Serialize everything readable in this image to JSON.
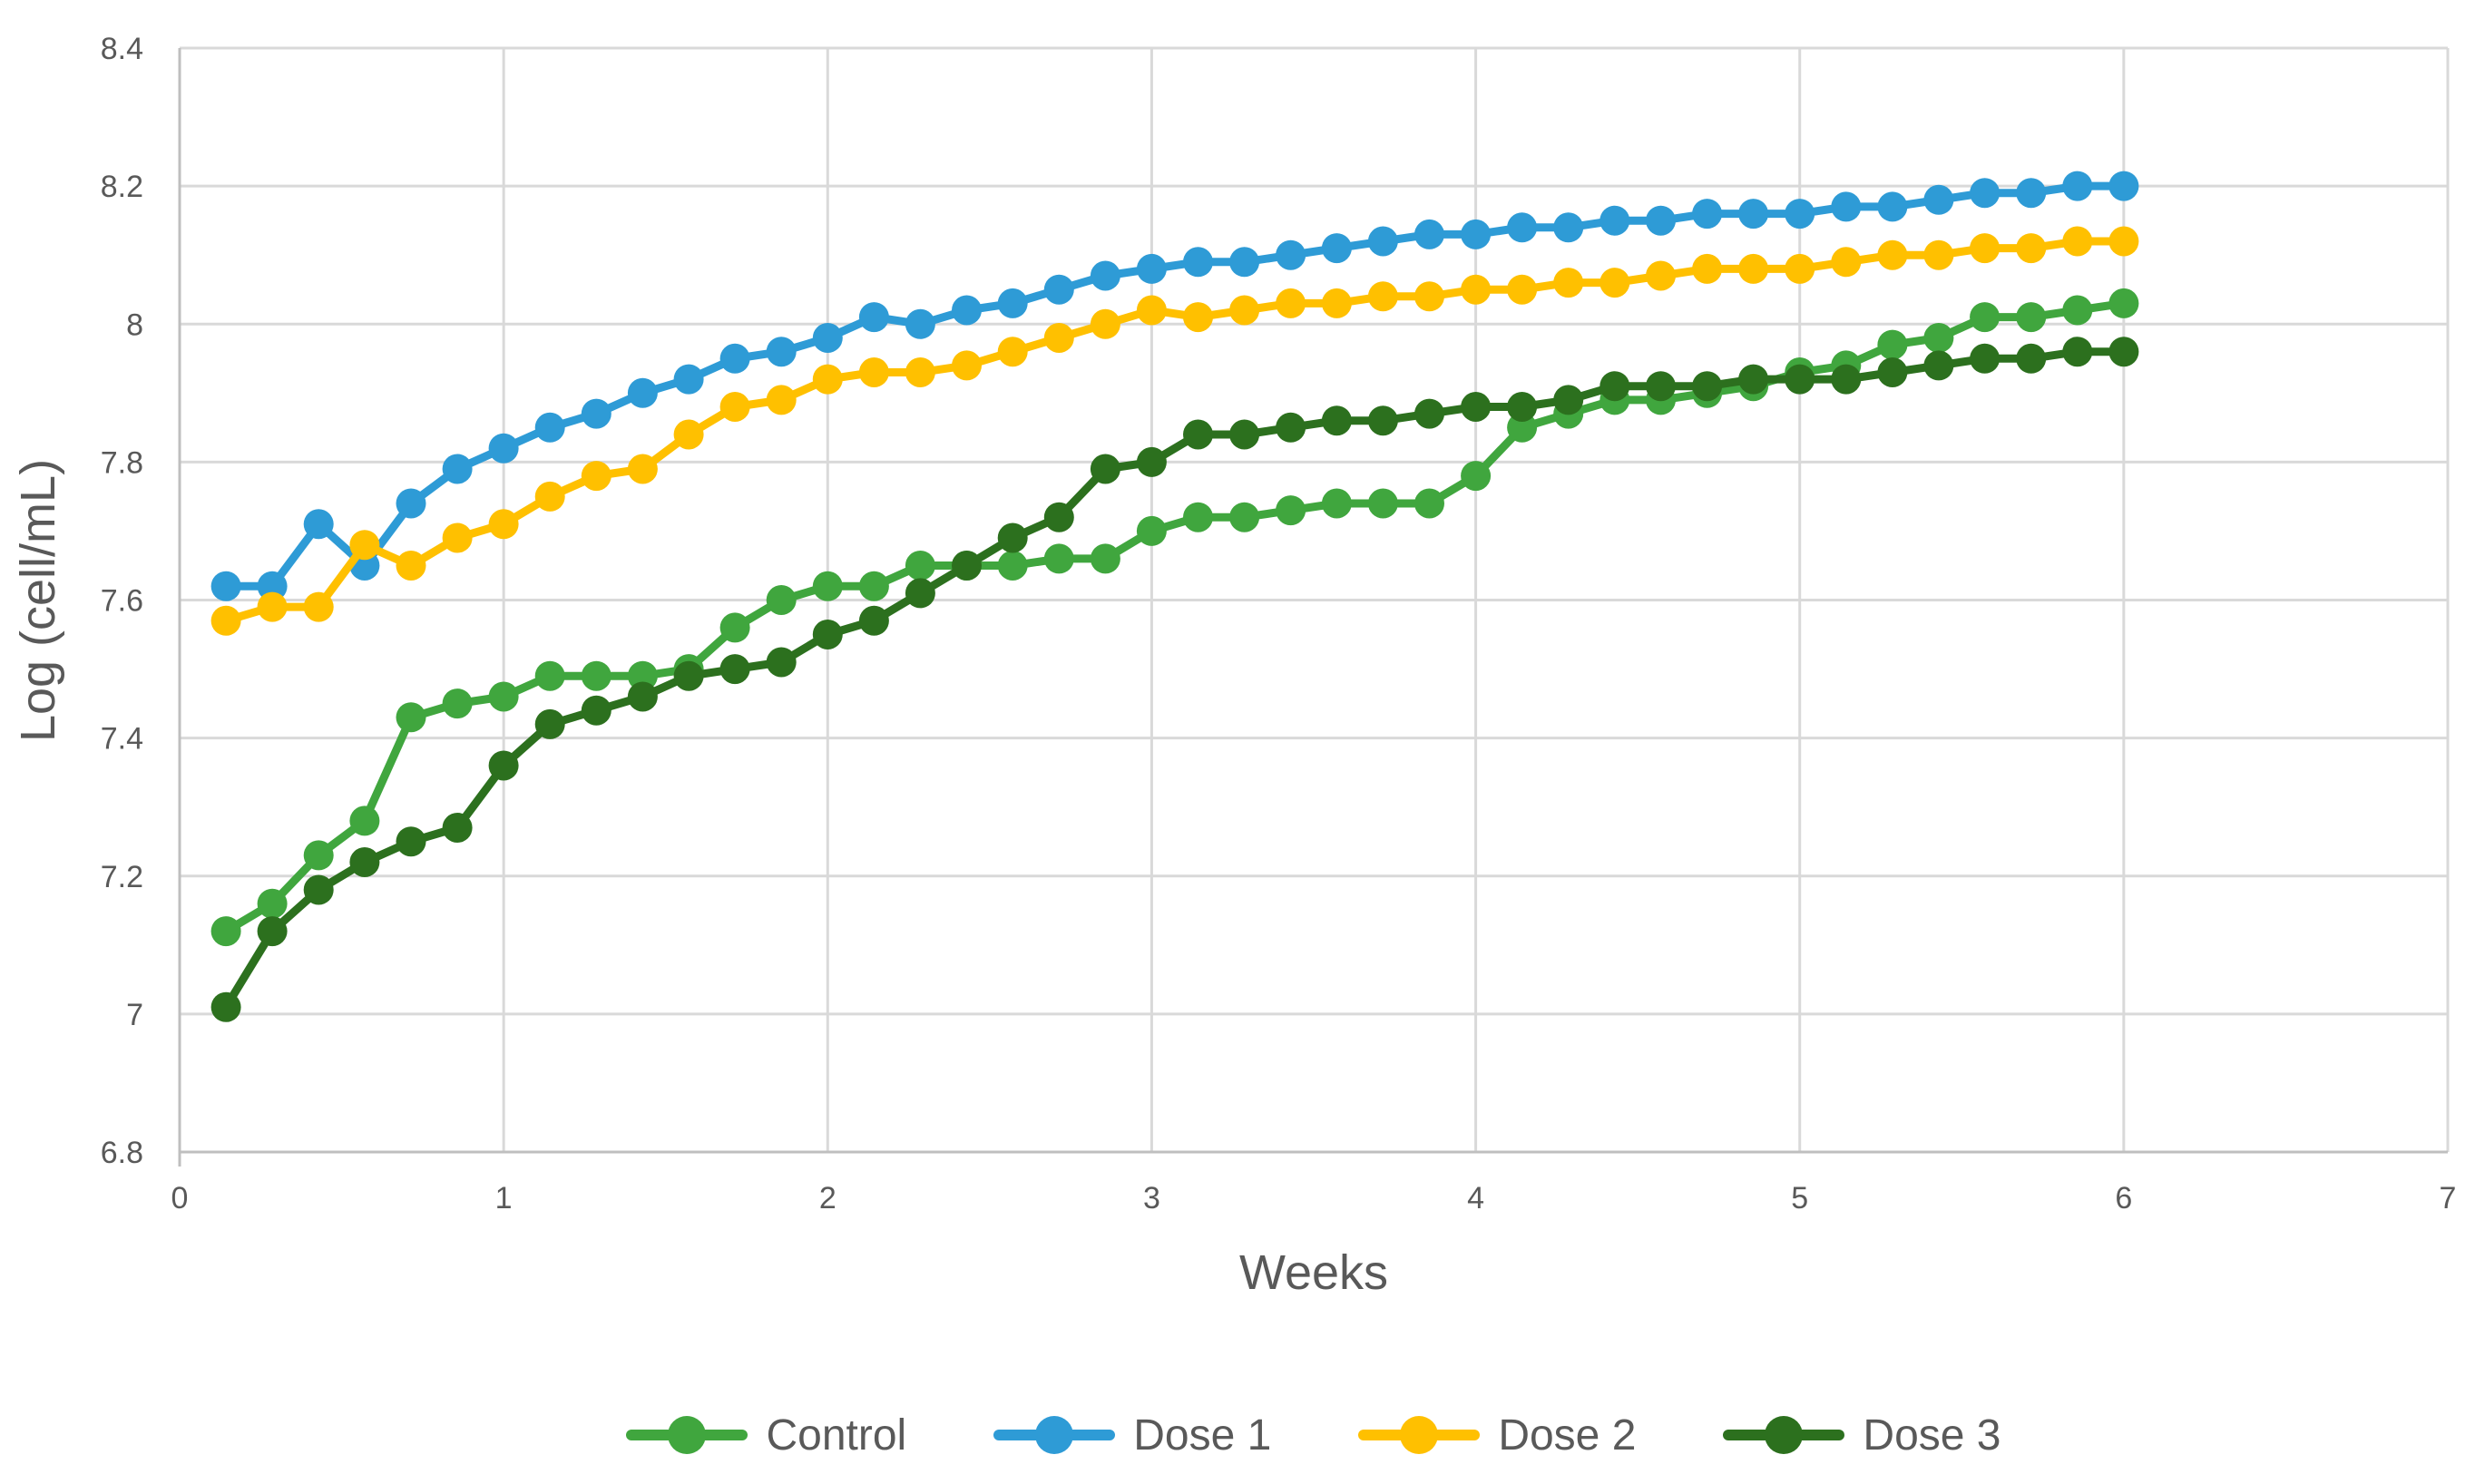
{
  "chart_data": {
    "type": "line",
    "title": "",
    "xlabel": "Weeks",
    "ylabel": "Log (cell/mL)",
    "xlim": [
      0,
      7
    ],
    "ylim": [
      6.8,
      8.4
    ],
    "x_tick_labels": [
      "0",
      "1",
      "2",
      "3",
      "4",
      "5",
      "6",
      "7"
    ],
    "x_tick_values": [
      0,
      1,
      2,
      3,
      4,
      5,
      6,
      7
    ],
    "y_tick_labels": [
      "6.8",
      "7",
      "7.2",
      "7.4",
      "7.6",
      "7.8",
      "8",
      "8.2",
      "8.4"
    ],
    "y_tick_values": [
      6.8,
      7.0,
      7.2,
      7.4,
      7.6,
      7.8,
      8.0,
      8.2,
      8.4
    ],
    "grid": true,
    "legend_position": "bottom",
    "x": [
      0.143,
      0.286,
      0.429,
      0.571,
      0.714,
      0.857,
      1.0,
      1.143,
      1.286,
      1.429,
      1.571,
      1.714,
      1.857,
      2.0,
      2.143,
      2.286,
      2.429,
      2.571,
      2.714,
      2.857,
      3.0,
      3.143,
      3.286,
      3.429,
      3.571,
      3.714,
      3.857,
      4.0,
      4.143,
      4.286,
      4.429,
      4.571,
      4.714,
      4.857,
      5.0,
      5.143,
      5.286,
      5.429,
      5.571,
      5.714,
      5.857,
      6.0
    ],
    "series": [
      {
        "name": "Control",
        "color": "#40A63E",
        "values": [
          7.12,
          7.16,
          7.23,
          7.28,
          7.43,
          7.45,
          7.46,
          7.49,
          7.49,
          7.49,
          7.5,
          7.56,
          7.6,
          7.62,
          7.62,
          7.65,
          7.65,
          7.65,
          7.66,
          7.66,
          7.7,
          7.72,
          7.72,
          7.73,
          7.74,
          7.74,
          7.74,
          7.78,
          7.85,
          7.87,
          7.89,
          7.89,
          7.9,
          7.91,
          7.93,
          7.94,
          7.97,
          7.98,
          8.01,
          8.01,
          8.02,
          8.03
        ]
      },
      {
        "name": "Dose 1",
        "color": "#2E9BD6",
        "values": [
          7.62,
          7.62,
          7.71,
          7.65,
          7.74,
          7.79,
          7.82,
          7.85,
          7.87,
          7.9,
          7.92,
          7.95,
          7.96,
          7.98,
          8.01,
          8.0,
          8.02,
          8.03,
          8.05,
          8.07,
          8.08,
          8.09,
          8.09,
          8.1,
          8.11,
          8.12,
          8.13,
          8.13,
          8.14,
          8.14,
          8.15,
          8.15,
          8.16,
          8.16,
          8.16,
          8.17,
          8.17,
          8.18,
          8.19,
          8.19,
          8.2,
          8.2
        ]
      },
      {
        "name": "Dose 2",
        "color": "#FFC000",
        "values": [
          7.57,
          7.59,
          7.59,
          7.68,
          7.65,
          7.69,
          7.71,
          7.75,
          7.78,
          7.79,
          7.84,
          7.88,
          7.89,
          7.92,
          7.93,
          7.93,
          7.94,
          7.96,
          7.98,
          8.0,
          8.02,
          8.01,
          8.02,
          8.03,
          8.03,
          8.04,
          8.04,
          8.05,
          8.05,
          8.06,
          8.06,
          8.07,
          8.08,
          8.08,
          8.08,
          8.09,
          8.1,
          8.1,
          8.11,
          8.11,
          8.12,
          8.12
        ]
      },
      {
        "name": "Dose 3",
        "color": "#2C701E",
        "values": [
          7.01,
          7.12,
          7.18,
          7.22,
          7.25,
          7.27,
          7.36,
          7.42,
          7.44,
          7.46,
          7.49,
          7.5,
          7.51,
          7.55,
          7.57,
          7.61,
          7.65,
          7.69,
          7.72,
          7.79,
          7.8,
          7.84,
          7.84,
          7.85,
          7.86,
          7.86,
          7.87,
          7.88,
          7.88,
          7.89,
          7.91,
          7.91,
          7.91,
          7.92,
          7.92,
          7.92,
          7.93,
          7.94,
          7.95,
          7.95,
          7.96,
          7.96
        ]
      }
    ]
  },
  "style": {
    "gridline_color": "#D9D9D9",
    "axis_line_color": "#BFBFBF",
    "text_color": "#595959",
    "background_color": "#FFFFFF"
  }
}
